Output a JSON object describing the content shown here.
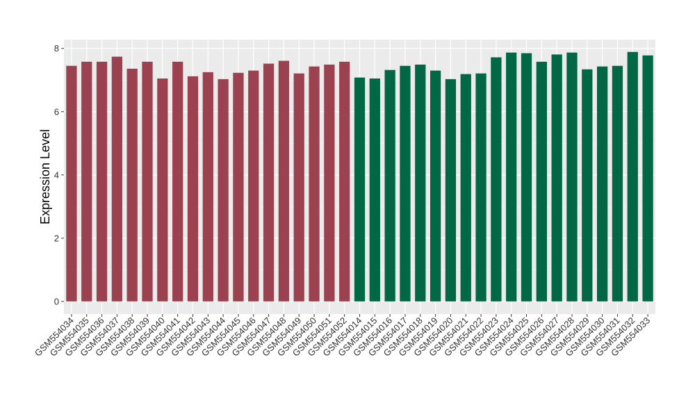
{
  "chart_data": {
    "type": "bar",
    "title": "",
    "xlabel": "",
    "ylabel": "Expression Level",
    "ylim": [
      -0.4,
      8.28
    ],
    "yticks": [
      0,
      2,
      4,
      6,
      8
    ],
    "grid": true,
    "legend": "none",
    "categories": [
      "GSM554034",
      "GSM554035",
      "GSM554036",
      "GSM554037",
      "GSM554038",
      "GSM554039",
      "GSM554040",
      "GSM554041",
      "GSM554042",
      "GSM554043",
      "GSM554044",
      "GSM554045",
      "GSM554046",
      "GSM554047",
      "GSM554048",
      "GSM554049",
      "GSM554050",
      "GSM554051",
      "GSM554052",
      "GSM554014",
      "GSM554015",
      "GSM554016",
      "GSM554017",
      "GSM554018",
      "GSM554019",
      "GSM554020",
      "GSM554021",
      "GSM554022",
      "GSM554023",
      "GSM554024",
      "GSM554025",
      "GSM554026",
      "GSM554027",
      "GSM554028",
      "GSM554029",
      "GSM554030",
      "GSM554031",
      "GSM554032",
      "GSM554033"
    ],
    "values": [
      7.45,
      7.58,
      7.58,
      7.74,
      7.36,
      7.58,
      7.05,
      7.58,
      7.12,
      7.25,
      7.03,
      7.23,
      7.3,
      7.52,
      7.61,
      7.21,
      7.43,
      7.49,
      7.58,
      7.08,
      7.05,
      7.32,
      7.45,
      7.49,
      7.3,
      7.03,
      7.19,
      7.21,
      7.72,
      7.87,
      7.85,
      7.58,
      7.81,
      7.87,
      7.34,
      7.43,
      7.45,
      7.89,
      7.78
    ],
    "groups": [
      19,
      20
    ],
    "colors": [
      "#9b4150",
      "#016745"
    ]
  }
}
